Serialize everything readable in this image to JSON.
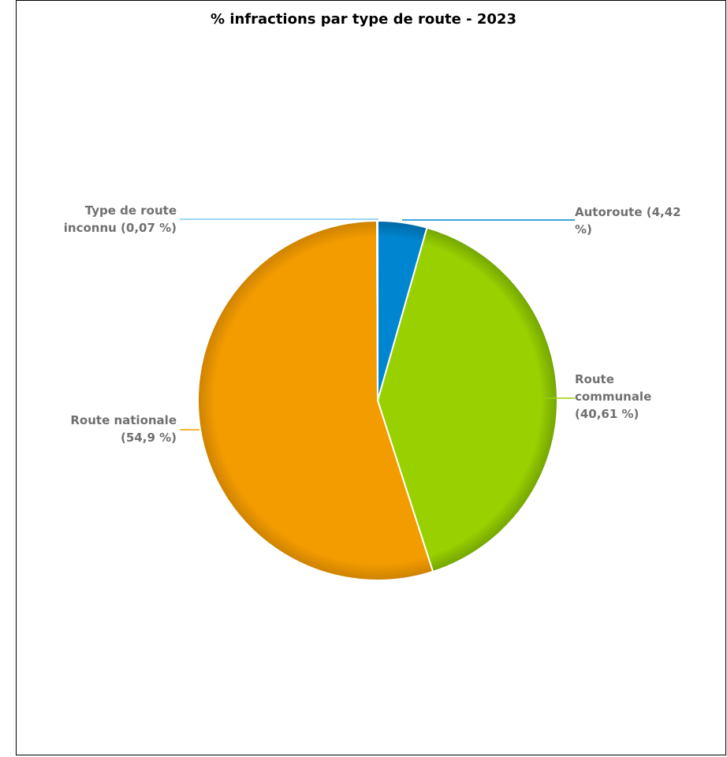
{
  "chart_data": {
    "type": "pie",
    "title": "% infractions par type de route - 2023",
    "slices": [
      {
        "name": "Autoroute",
        "value": 4.42,
        "color": "#0086D1",
        "label_lines": [
          "Autoroute (4,42",
          "%)"
        ]
      },
      {
        "name": "Route communale",
        "value": 40.61,
        "color": "#99D000",
        "label_lines": [
          "Route",
          "communale",
          "(40,61 %)"
        ]
      },
      {
        "name": "Route nationale",
        "value": 54.9,
        "color": "#F39C00",
        "label_lines": [
          "Route nationale",
          "(54,9 %)"
        ]
      },
      {
        "name": "Type de route inconnu",
        "value": 0.07,
        "color": "#7FC8F2",
        "label_lines": [
          "Type de route",
          "inconnu (0,07 %)"
        ]
      }
    ]
  }
}
